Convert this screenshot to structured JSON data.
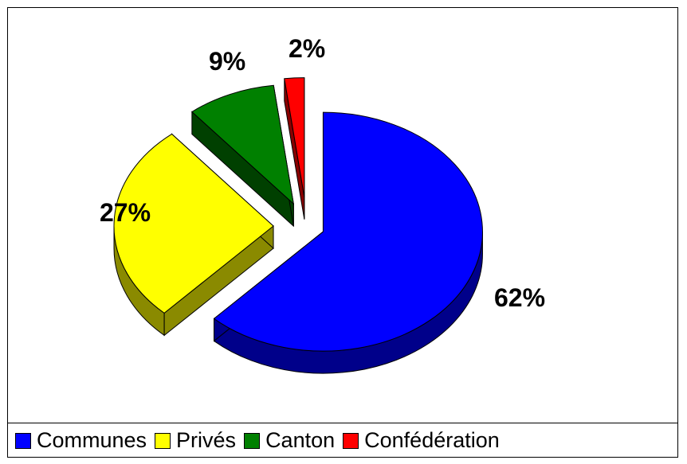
{
  "chart_data": {
    "type": "pie",
    "style": "3d-exploded",
    "categories": [
      "Communes",
      "Privés",
      "Canton",
      "Confédération"
    ],
    "values": [
      62,
      27,
      9,
      2
    ],
    "labels": [
      "62%",
      "27%",
      "9%",
      "2%"
    ],
    "colors": [
      "#0000ff",
      "#ffff00",
      "#008000",
      "#ff0000"
    ],
    "side_colors": [
      "#00008a",
      "#8a8a00",
      "#004000",
      "#8a0000"
    ],
    "legend_position": "bottom"
  }
}
